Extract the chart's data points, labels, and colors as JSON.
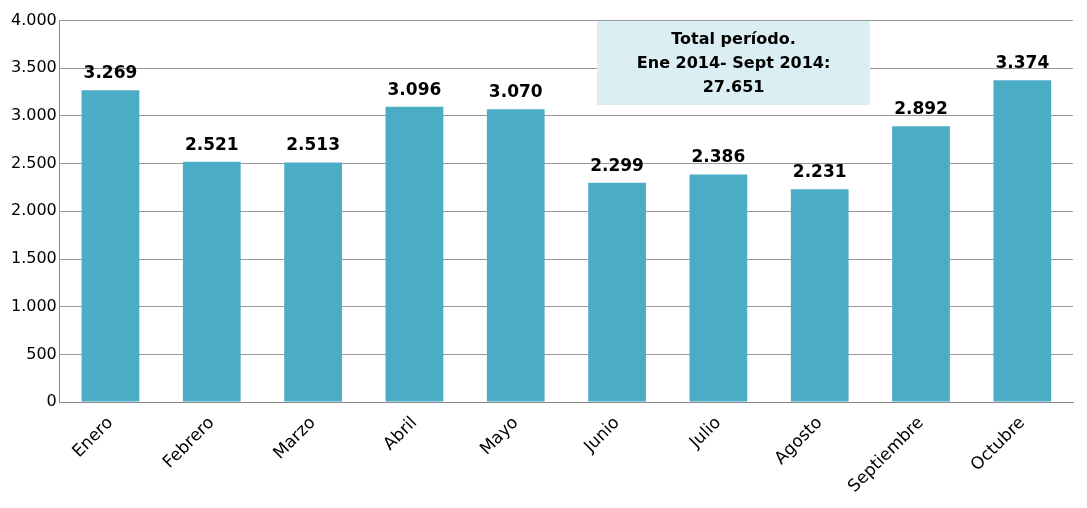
{
  "chart_data": {
    "type": "bar",
    "categories": [
      "Enero",
      "Febrero",
      "Marzo",
      "Abril",
      "Mayo",
      "Junio",
      "Julio",
      "Agosto",
      "Septiembre",
      "Octubre"
    ],
    "values": [
      3269,
      2521,
      2513,
      3096,
      3070,
      2299,
      2386,
      2231,
      2892,
      3374
    ],
    "value_labels": [
      "3.269",
      "2.521",
      "2.513",
      "3.096",
      "3.070",
      "2.299",
      "2.386",
      "2.231",
      "2.892",
      "3.374"
    ],
    "color": "#4bacc6",
    "ylim": [
      0,
      4000
    ],
    "yticks": [
      {
        "value": 0,
        "label": "0"
      },
      {
        "value": 500,
        "label": "500"
      },
      {
        "value": 1000,
        "label": "1.000"
      },
      {
        "value": 1500,
        "label": "1.500"
      },
      {
        "value": 2000,
        "label": "2.000"
      },
      {
        "value": 2500,
        "label": "2.500"
      },
      {
        "value": 3000,
        "label": "3.000"
      },
      {
        "value": 3500,
        "label": "3.500"
      },
      {
        "value": 4000,
        "label": "4.000"
      }
    ],
    "grid": "y",
    "legend": false,
    "annotations": [
      "Total período.\nEne 2014- Sept 2014:\n27.651"
    ]
  }
}
